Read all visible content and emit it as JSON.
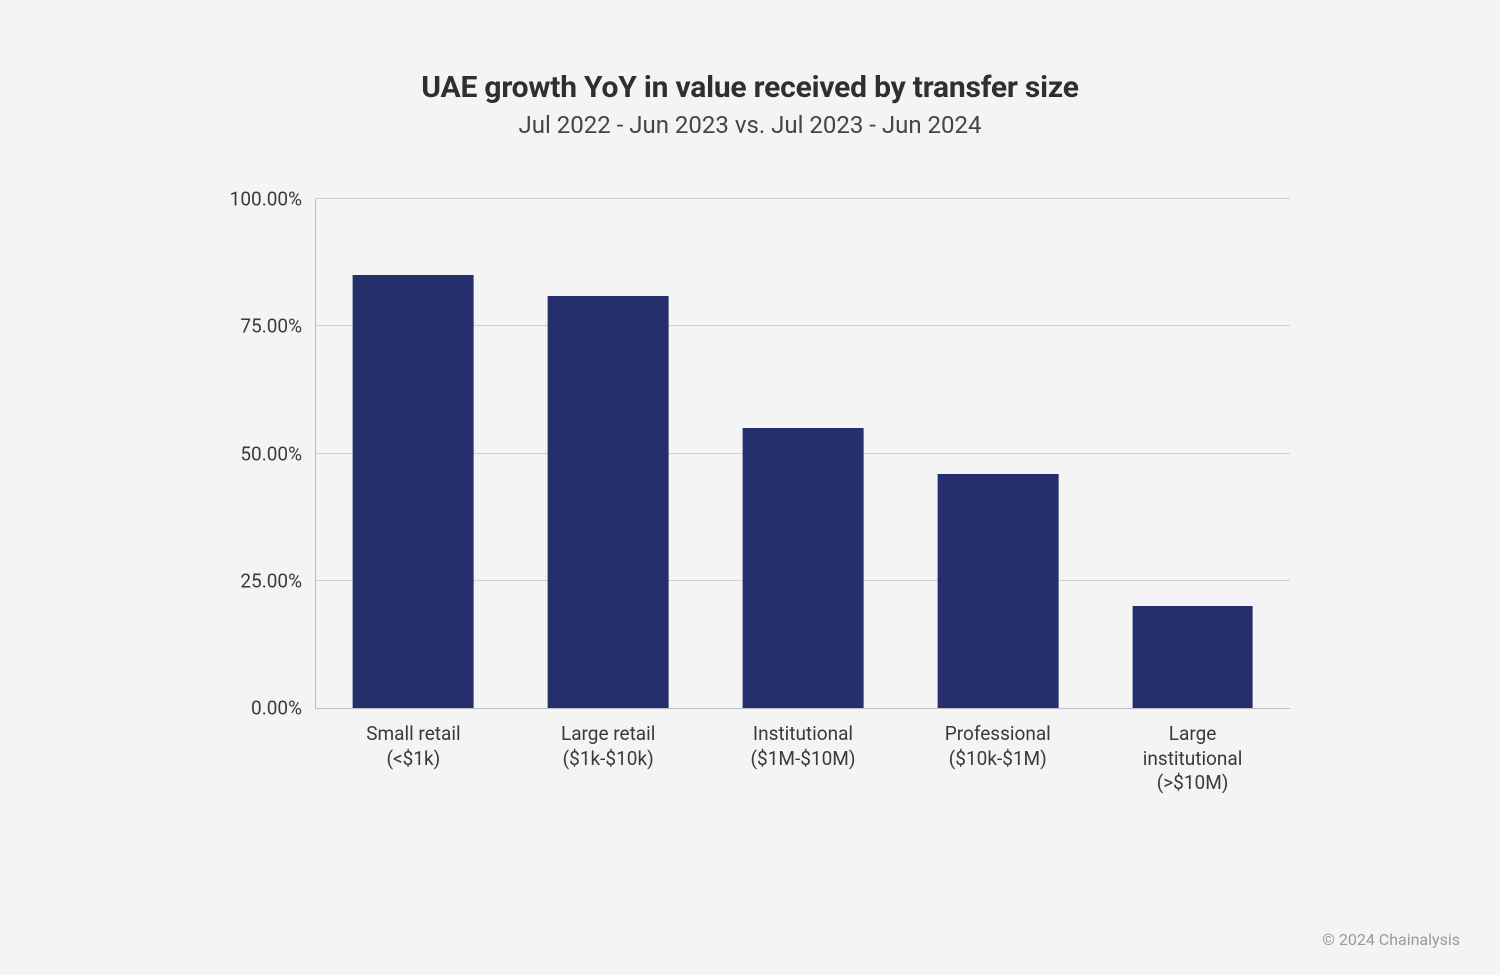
{
  "title": "UAE growth YoY in value received by transfer size",
  "subtitle": "Jul 2022 - Jun 2023 vs. Jul 2023 - Jun 2024",
  "footer": "© 2024 Chainalysis",
  "chart": {
    "type": "bar",
    "background_color": "#f4f4f4",
    "grid_color": "#cfcfcf",
    "axis_color": "#bdbdbd",
    "bar_color": "#242f6b",
    "text_color": "#3a3a3a",
    "title_fontsize": 30,
    "subtitle_fontsize": 24,
    "tick_fontsize": 19,
    "ymin": 0,
    "ymax": 100,
    "yticks": [
      0,
      25,
      50,
      75,
      100
    ],
    "ytick_labels": [
      "0.00%",
      "25.00%",
      "50.00%",
      "75.00%",
      "100.00%"
    ],
    "bar_width_pct": 62,
    "categories": [
      {
        "label_line1": "Small retail",
        "label_line2": "(<$1k)",
        "value": 85
      },
      {
        "label_line1": "Large retail",
        "label_line2": "($1k-$10k)",
        "value": 81
      },
      {
        "label_line1": "Institutional",
        "label_line2": "($1M-$10M)",
        "value": 55
      },
      {
        "label_line1": "Professional",
        "label_line2": "($10k-$1M)",
        "value": 46
      },
      {
        "label_line1": "Large",
        "label_line2": "institutional",
        "label_line3": "(>$10M)",
        "value": 20
      }
    ]
  }
}
